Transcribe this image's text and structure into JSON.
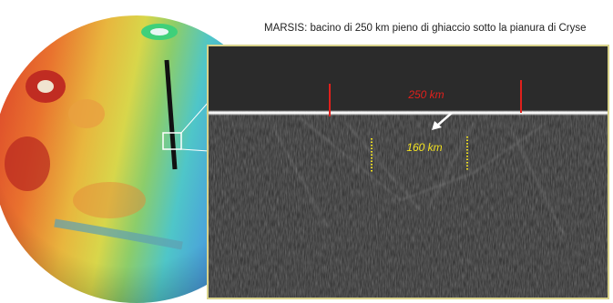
{
  "title": "MARSIS: bacino di 250 km pieno di ghiaccio sotto la pianura di Cryse",
  "annotations": [
    {
      "label": "250 km"
    },
    {
      "label": "160 km"
    }
  ]
}
